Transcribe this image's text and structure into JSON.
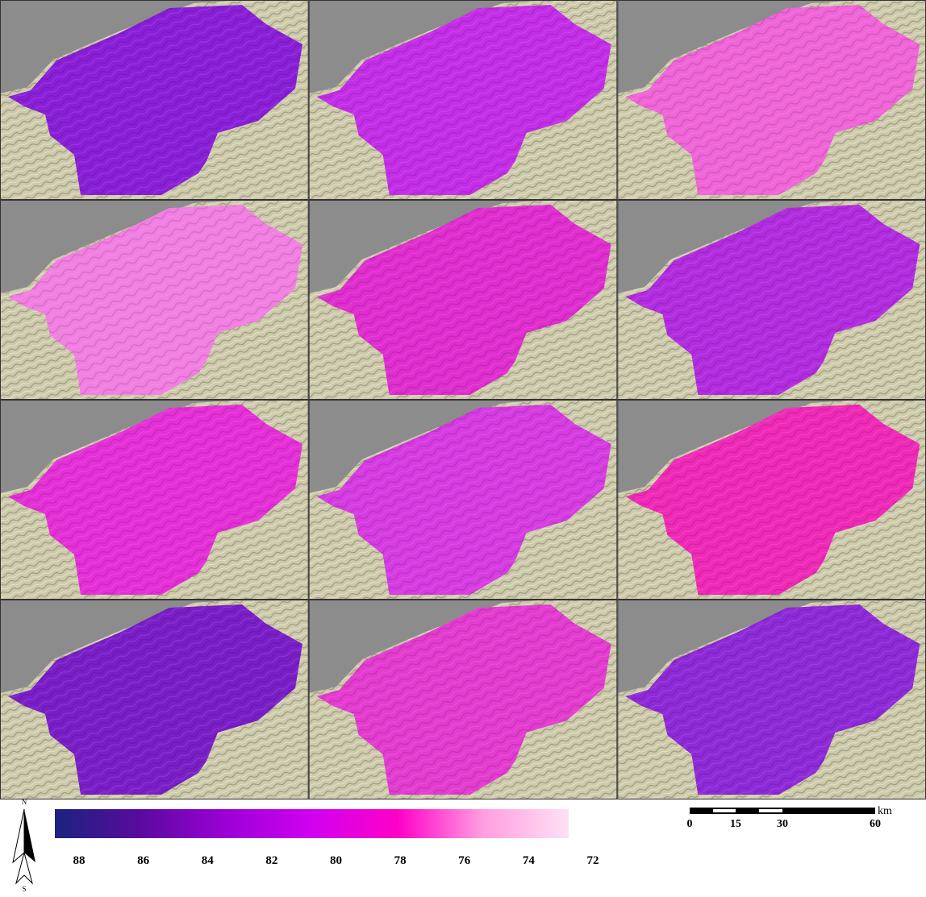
{
  "panels": [
    {
      "color": "#8a1fd8"
    },
    {
      "color": "#c42ee8"
    },
    {
      "color": "#f065d8"
    },
    {
      "color": "#f27fe2"
    },
    {
      "color": "#e02ed0"
    },
    {
      "color": "#b22ce0"
    },
    {
      "color": "#e530d8"
    },
    {
      "color": "#d63ce2"
    },
    {
      "color": "#f02ab8"
    },
    {
      "color": "#7a1fc8"
    },
    {
      "color": "#e43cd0"
    },
    {
      "color": "#8e2ad8"
    }
  ],
  "legend": {
    "colors": [
      "#1a237e",
      "#5a0a9e",
      "#9b00d6",
      "#d000f0",
      "#ff00c8",
      "#ff9ee0",
      "#ffe0f4"
    ],
    "ticks": [
      "88",
      "86",
      "84",
      "82",
      "80",
      "78",
      "76",
      "74",
      "72"
    ]
  },
  "scale_bar": {
    "labels": [
      "0",
      "15",
      "30",
      "60"
    ],
    "unit": "km"
  },
  "north_arrow": {
    "north": "N",
    "south": "S"
  }
}
